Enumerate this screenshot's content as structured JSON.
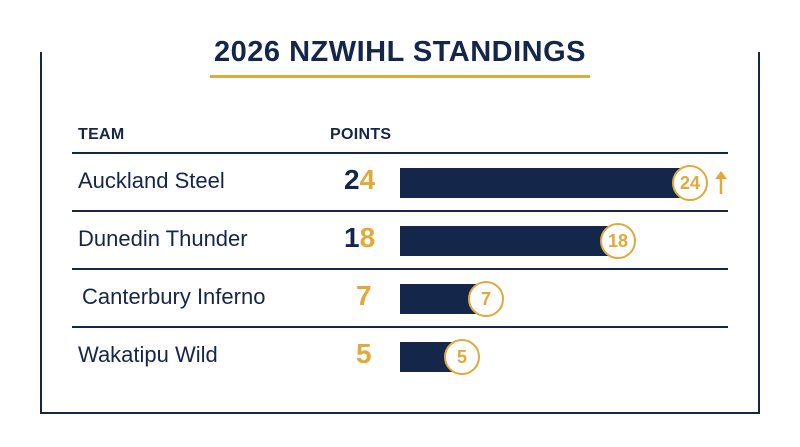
{
  "chart_data": {
    "type": "bar",
    "title": "2026 NZWIHL STANDINGS",
    "column_headers": {
      "team": "TEAM",
      "points": "POINTS"
    },
    "categories": [
      "Auckland Steel",
      "Dunedin Thunder",
      "Canterbury Inferno",
      "Wakatipu Wild"
    ],
    "values": [
      24,
      18,
      7,
      5
    ],
    "xlim": [
      0,
      24
    ],
    "orientation": "horizontal",
    "grid": false,
    "legend": "none",
    "trend": [
      "up",
      null,
      null,
      null
    ],
    "colors": {
      "bar": "#14264a",
      "accent": "#e0a93a",
      "text": "#14264a"
    }
  }
}
